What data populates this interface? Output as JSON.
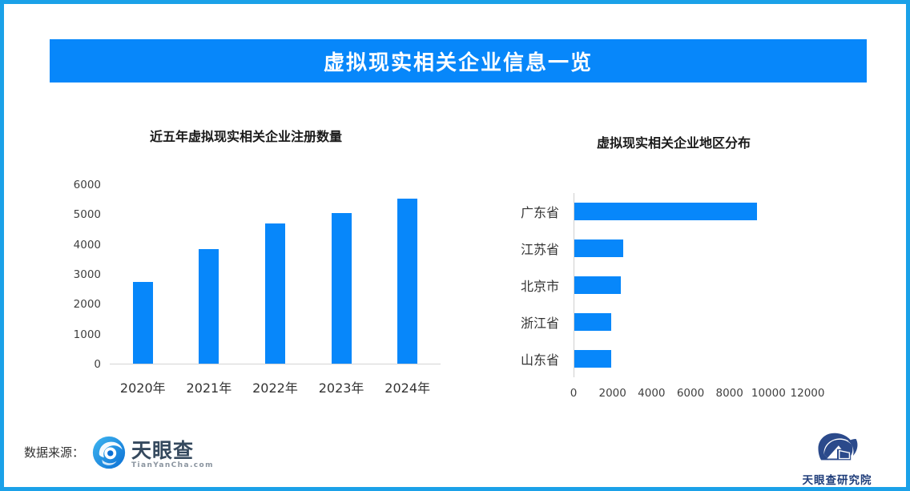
{
  "header": {
    "title": "虚拟现实相关企业信息一览"
  },
  "colors": {
    "brand_blue": "#0787FA",
    "frame_border_blue": "#1BA1E8",
    "axis_line_gray": "#d4d4d4",
    "logo_navy": "#2B4A8B"
  },
  "chart_data": [
    {
      "type": "bar",
      "orientation": "vertical",
      "title": "近五年虚拟现实相关企业注册数量",
      "categories": [
        "2020年",
        "2021年",
        "2022年",
        "2023年",
        "2024年"
      ],
      "values": [
        2750,
        3850,
        4700,
        5050,
        5550
      ],
      "xlabel": "",
      "ylabel": "",
      "ylim": [
        0,
        6000
      ],
      "ytick_step": 1000,
      "grid": false,
      "legend": false,
      "bar_color": "#0787FA"
    },
    {
      "type": "bar",
      "orientation": "horizontal",
      "title": "虚拟现实相关企业地区分布",
      "categories": [
        "广东省",
        "江苏省",
        "北京市",
        "浙江省",
        "山东省"
      ],
      "values": [
        9400,
        2500,
        2400,
        1900,
        1900
      ],
      "xlabel": "",
      "ylabel": "",
      "xlim": [
        0,
        12000
      ],
      "xtick_step": 2000,
      "grid": false,
      "legend": false,
      "bar_color": "#0787FA"
    }
  ],
  "footer": {
    "source_label": "数据来源：",
    "tianyancha_logo": {
      "name": "天眼查",
      "url_text": "TianYanCha.com"
    },
    "research_logo": {
      "name": "天眼查研究院"
    }
  }
}
